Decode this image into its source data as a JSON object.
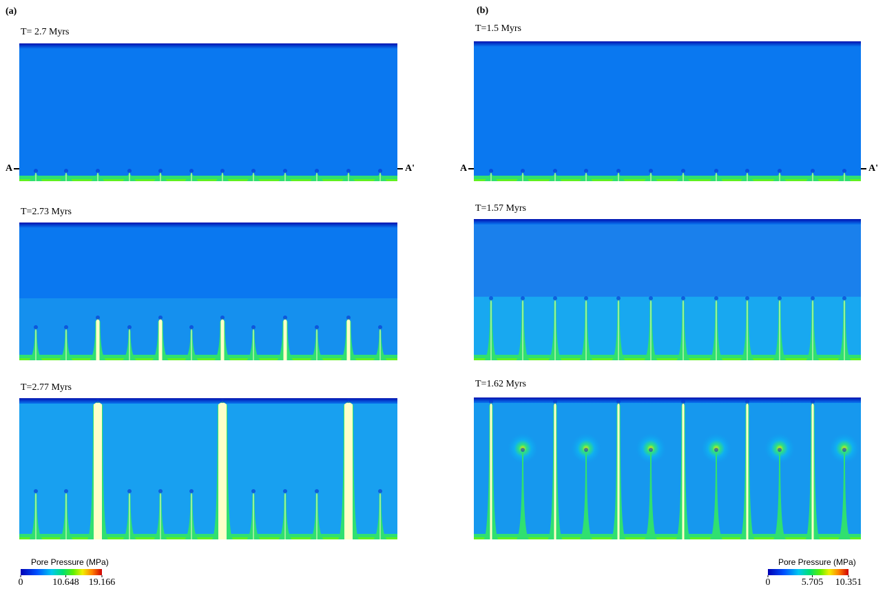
{
  "panels": [
    {
      "label": "(a)",
      "snapshots": [
        {
          "time": "T= 2.7 Myrs"
        },
        {
          "time": "T=2.73 Myrs"
        },
        {
          "time": "T=2.77 Myrs"
        }
      ],
      "section_start": "A",
      "section_end": "A'",
      "colorbar": {
        "title": "Pore Pressure (MPa)",
        "ticks": [
          0,
          10.648,
          19.166
        ]
      }
    },
    {
      "label": "(b)",
      "snapshots": [
        {
          "time": "T=1.5 Myrs"
        },
        {
          "time": "T=1.57 Myrs"
        },
        {
          "time": "T=1.62 Myrs"
        }
      ],
      "section_start": "A",
      "section_end": "A'",
      "colorbar": {
        "title": "Pore Pressure (MPa)",
        "ticks": [
          0,
          5.705,
          10.351
        ]
      }
    }
  ]
}
